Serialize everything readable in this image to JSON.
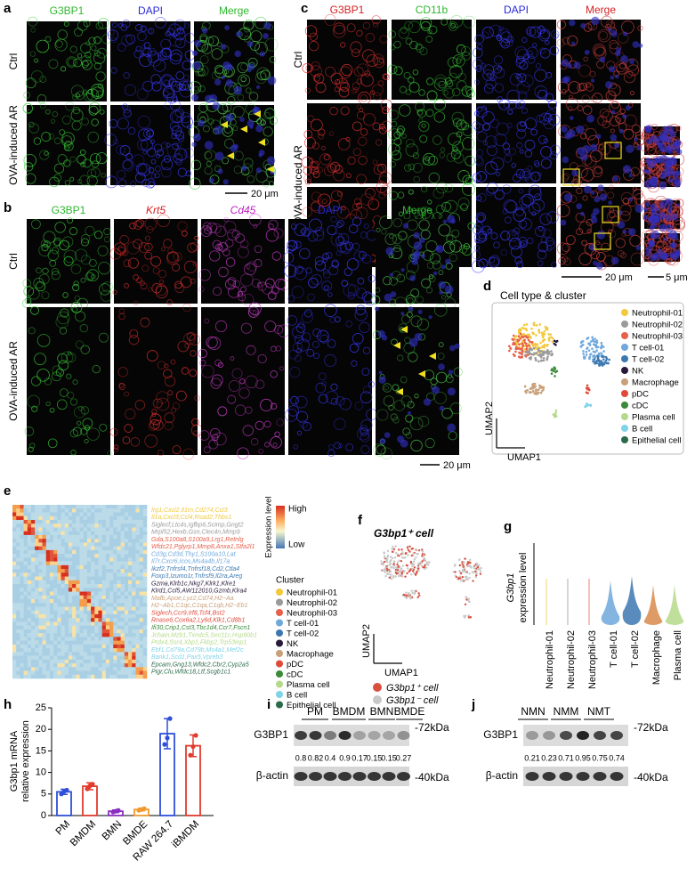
{
  "panel_a": {
    "label": "a",
    "columns": [
      "G3BP1",
      "DAPI",
      "Merge"
    ],
    "rows": [
      "Ctrl",
      "OVA-induced AR"
    ],
    "scale_bar": "20 μm"
  },
  "panel_b": {
    "label": "b",
    "columns": [
      "G3BP1",
      "Krt5",
      "Cd45",
      "DAPI",
      "Merge"
    ],
    "rows": [
      "Ctrl",
      "OVA-induced AR"
    ],
    "scale_bar": "20 μm"
  },
  "panel_c": {
    "label": "c",
    "columns": [
      "G3BP1",
      "CD11b",
      "DAPI",
      "Merge"
    ],
    "rows": [
      "Ctrl",
      "OVA-induced AR"
    ],
    "scale_bars": [
      "20 μm",
      "5 μm"
    ]
  },
  "panel_d": {
    "label": "d",
    "title": "Cell type & cluster",
    "x_label": "UMAP1",
    "y_label": "UMAP2",
    "legend": [
      {
        "name": "Neutrophil-01",
        "color": "#f2c83c"
      },
      {
        "name": "Neutrophil-02",
        "color": "#9a9a9a"
      },
      {
        "name": "Neutrophil-03",
        "color": "#e8604c"
      },
      {
        "name": "T cell-01",
        "color": "#6fa8dc"
      },
      {
        "name": "T cell-02",
        "color": "#3c78b0"
      },
      {
        "name": "NK",
        "color": "#2a1a3a"
      },
      {
        "name": "Macrophage",
        "color": "#c9a07a"
      },
      {
        "name": "pDC",
        "color": "#e04a3a"
      },
      {
        "name": "cDC",
        "color": "#3a8a3a"
      },
      {
        "name": "Plasma cell",
        "color": "#b5d98a"
      },
      {
        "name": "B cell",
        "color": "#7fd3e8"
      },
      {
        "name": "Epithelial cell",
        "color": "#2a6a4a"
      }
    ]
  },
  "panel_e": {
    "label": "e",
    "color_scale_title": "Expression level",
    "color_scale_labels": [
      "High",
      "Low"
    ],
    "legend_title": "Cluster",
    "legend": [
      {
        "name": "Neutrophil-01",
        "color": "#f2c83c"
      },
      {
        "name": "Neutrophil-02",
        "color": "#9a9a9a"
      },
      {
        "name": "Neutrophil-03",
        "color": "#e8604c"
      },
      {
        "name": "T cell-01",
        "color": "#6fa8dc"
      },
      {
        "name": "T cell-02",
        "color": "#3c78b0"
      },
      {
        "name": "NK",
        "color": "#2a1a3a"
      },
      {
        "name": "Macrophage",
        "color": "#c9a07a"
      },
      {
        "name": "pDC",
        "color": "#e04a3a"
      },
      {
        "name": "cDC",
        "color": "#3a8a3a"
      },
      {
        "name": "Plasma cell",
        "color": "#b5d98a"
      },
      {
        "name": "B cell",
        "color": "#7fd3e8"
      },
      {
        "name": "Epithelial cell",
        "color": "#2a6a4a"
      }
    ],
    "gene_lists": [
      [
        "Irg1,Cxcl2,Il1rn,Cd274,Ccl3",
        "Il1a,Cxcl3,Ccl4,Rsad2,Thbs1"
      ],
      [
        "Siglecf,Ltc4s,Igfbp6,Scimp,Gngt2",
        "Mrpl52,Hexb,Gsn,Clec4n,Mmp9"
      ],
      [
        "Gda,S100a8,S100a9,Lrg1,Retnlg",
        "Wfdc21,Pglyrp1,Mmp8,Anxa1,Stfa2l1"
      ],
      [
        "Cd3g,Cd3d,Thy1,S100a10,Lat",
        "Il7r,Cxcr6,Icos,Ms4a4b,Il17a"
      ],
      [
        "Ikzf2,Tnfrsf4,Tnfrsf18,Cd2,Ctla4",
        "Foxp3,Izumo1r,Tnfrsf9,Il2ra,Areg"
      ],
      [
        "Gzma,Klrb1c,Nkg7,Klrk1,Klre1",
        "Klrd1,Ccl5,AW112010,Gzmb,Klra4"
      ],
      [
        "Mafb,Apoe,Lyz2,Cd74,H2−Aa",
        "H2−Ab1,C1qc,C1qa,C1qb,H2−Eb1"
      ],
      [
        "Siglech,Ccr9,Irf8,Tcf4,Bst2",
        "Rnase6,Cox6a2,Ly6d,Klk1,Cd8b1"
      ],
      [
        "Ifi30,Crip1,Cst3,Tbc1d4,Ccr7,Fscn1"
      ],
      [
        "Jchain,Mzb1,Txndc5,Sec11c,Hsp90b1",
        "Prdx4,Ssr4,Xbp1,Fkbp2,Trp53inp1"
      ],
      [
        "Ebf1,Cd79a,Cd79b,Ms4a1,Mef2c",
        "Bank1,Scd1,Pax5,Vpreb3"
      ],
      [
        "Epcam,Gng13,Wfdc2,Cbr2,Cyp2a5",
        "Pigr,Clu,Wfdc18,Ltf,Scgb1c1"
      ]
    ]
  },
  "panel_f": {
    "label": "f",
    "title": "G3bp1⁺ cell",
    "x_label": "UMAP1",
    "y_label": "UMAP2",
    "legend": [
      {
        "name": "G3bp1⁺ cell",
        "color": "#d9503f"
      },
      {
        "name": "G3bp1⁻ cell",
        "color": "#c8c8c8"
      }
    ]
  },
  "panel_g": {
    "label": "g",
    "y_label": [
      "G3bp1",
      "expression level"
    ],
    "categories": [
      "Neutrophil-01",
      "Neutrophil-02",
      "Neutrophil-03",
      "T cell-01",
      "T cell-02",
      "Macrophage",
      "Plasma cell"
    ]
  },
  "chart_data": {
    "type": "bar",
    "label": "h",
    "y_label": [
      "G3bp1 mRNA",
      "relative expression"
    ],
    "categories": [
      "PM",
      "BMDM",
      "BMN",
      "BMDE",
      "RAW 264.7",
      "iBMDM"
    ],
    "values": [
      5.5,
      6.8,
      1.0,
      1.4,
      19.0,
      16.2
    ],
    "errors": [
      0.6,
      0.8,
      0.3,
      0.3,
      3.5,
      2.5
    ],
    "points": [
      [
        5.0,
        5.6,
        5.9
      ],
      [
        6.2,
        6.9,
        7.3
      ],
      [
        0.8,
        1.0,
        1.2
      ],
      [
        1.2,
        1.4,
        1.6
      ],
      [
        16.5,
        18.0,
        22.5
      ],
      [
        14.0,
        16.0,
        18.6
      ]
    ],
    "colors": [
      "#2f4fd8",
      "#e23a2e",
      "#8a2fc0",
      "#f29a2e",
      "#2f4fd8",
      "#e23a2e"
    ],
    "ylim": [
      0,
      25
    ],
    "yticks": [
      0,
      5,
      10,
      15,
      20,
      25
    ]
  },
  "panel_i": {
    "label": "i",
    "groups": [
      "PM",
      "BMDM",
      "BMN",
      "BMDE"
    ],
    "rows": [
      "G3BP1",
      "β-actin"
    ],
    "markers": [
      "-72kDa",
      "-40kDa"
    ],
    "band_ratios": [
      0.8,
      0.82,
      0.4,
      0.9,
      0.17,
      0.15,
      0.15,
      0.27
    ]
  },
  "panel_j": {
    "label": "j",
    "groups": [
      "NMN",
      "NMM",
      "NMT"
    ],
    "rows": [
      "G3BP1",
      "β-actin"
    ],
    "markers": [
      "-72kDa",
      "-40kDa"
    ],
    "band_ratios": [
      0.21,
      0.23,
      0.71,
      0.95,
      0.75,
      0.74
    ]
  }
}
